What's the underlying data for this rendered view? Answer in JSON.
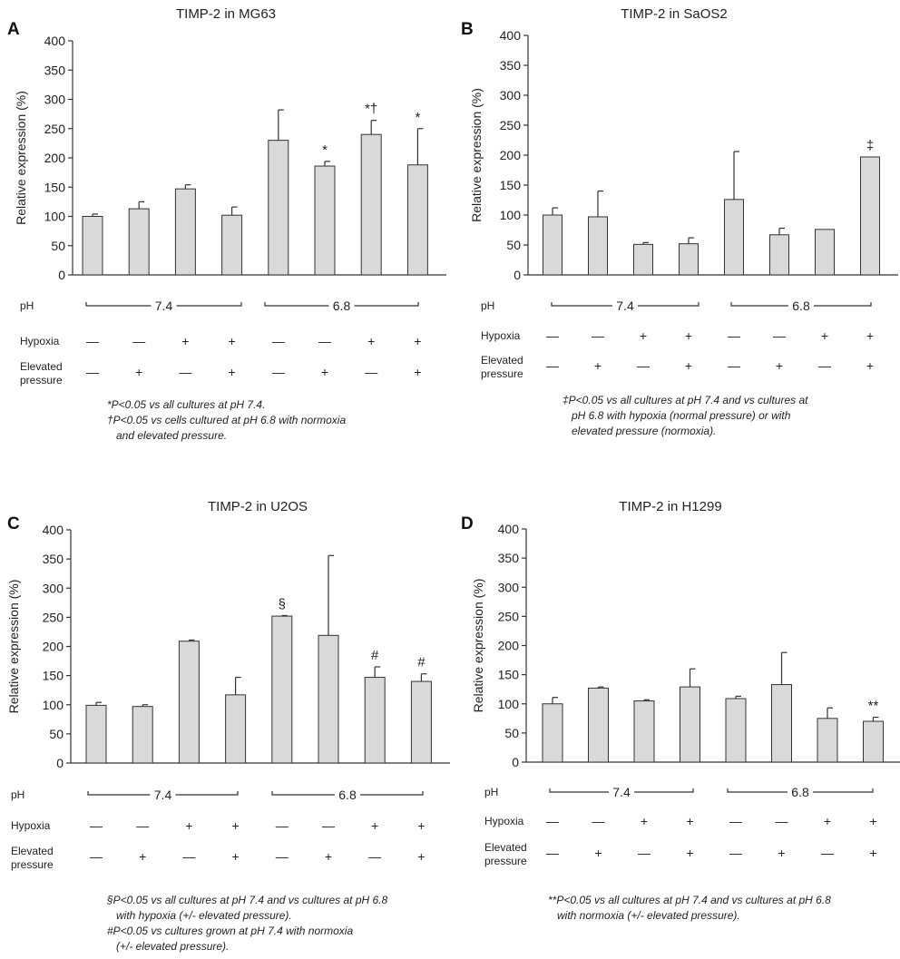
{
  "row_labels": {
    "ph": "pH",
    "hypoxia": "Hypoxia",
    "elevated_line1": "Elevated",
    "elevated_line2": "pressure",
    "ph_group1": "7.4",
    "ph_group2": "6.8"
  },
  "ylabel": "Relative expression (%)",
  "hypoxia_signs": [
    "—",
    "—",
    "+",
    "+",
    "—",
    "—",
    "+",
    "+"
  ],
  "pressure_signs": [
    "—",
    "+",
    "—",
    "+",
    "—",
    "+",
    "—",
    "+"
  ],
  "notes": {
    "A": [
      "*P<0.05 vs all cultures at pH 7.4.",
      "†P<0.05 vs cells cultured at pH 6.8 with normoxia",
      "   and elevated pressure."
    ],
    "B": [
      "‡P<0.05 vs all cultures at pH 7.4 and vs cultures at",
      "   pH 6.8 with hypoxia (normal pressure) or with",
      "   elevated pressure (normoxia)."
    ],
    "C": [
      "§P<0.05 vs all cultures at pH 7.4 and vs cultures at pH 6.8",
      "   with hypoxia (+/- elevated pressure).",
      "#P<0.05 vs cultures grown at pH 7.4 with normoxia",
      "   (+/- elevated pressure)."
    ],
    "D": [
      "**P<0.05 vs all cultures at pH 7.4 and vs cultures at pH 6.8",
      "   with normoxia (+/- elevated pressure)."
    ]
  },
  "chart_data": [
    {
      "panel": "A",
      "type": "bar",
      "title": "TIMP-2 in MG63",
      "ylabel": "Relative expression (%)",
      "ylim": [
        0,
        400
      ],
      "yticks": [
        0,
        50,
        100,
        150,
        200,
        250,
        300,
        350,
        400
      ],
      "categories": [
        "pH 7.4 / normoxia / normal",
        "pH 7.4 / normoxia / elevated",
        "pH 7.4 / hypoxia / normal",
        "pH 7.4 / hypoxia / elevated",
        "pH 6.8 / normoxia / normal",
        "pH 6.8 / normoxia / elevated",
        "pH 6.8 / hypoxia / normal",
        "pH 6.8 / hypoxia / elevated"
      ],
      "values": [
        100,
        113,
        147,
        102,
        230,
        186,
        240,
        188
      ],
      "errors": [
        4,
        12,
        7,
        14,
        52,
        8,
        24,
        62
      ],
      "annotations": [
        "",
        "",
        "",
        "",
        "",
        "*",
        "*†",
        "*"
      ]
    },
    {
      "panel": "B",
      "type": "bar",
      "title": "TIMP-2 in SaOS2",
      "ylabel": "Relative expression (%)",
      "ylim": [
        0,
        400
      ],
      "yticks": [
        0,
        50,
        100,
        150,
        200,
        250,
        300,
        350,
        400
      ],
      "categories": [
        "pH 7.4 / normoxia / normal",
        "pH 7.4 / normoxia / elevated",
        "pH 7.4 / hypoxia / normal",
        "pH 7.4 / hypoxia / elevated",
        "pH 6.8 / normoxia / normal",
        "pH 6.8 / normoxia / elevated",
        "pH 6.8 / hypoxia / normal",
        "pH 6.8 / hypoxia / elevated"
      ],
      "values": [
        100,
        97,
        51,
        52,
        126,
        67,
        76,
        197
      ],
      "errors": [
        12,
        43,
        3,
        10,
        80,
        11,
        0,
        0
      ],
      "annotations": [
        "",
        "",
        "",
        "",
        "",
        "",
        "",
        "‡"
      ]
    },
    {
      "panel": "C",
      "type": "bar",
      "title": "TIMP-2 in U2OS",
      "ylabel": "Relative expression (%)",
      "ylim": [
        0,
        400
      ],
      "yticks": [
        0,
        50,
        100,
        150,
        200,
        250,
        300,
        350,
        400
      ],
      "categories": [
        "pH 7.4 / normoxia / normal",
        "pH 7.4 / normoxia / elevated",
        "pH 7.4 / hypoxia / normal",
        "pH 7.4 / hypoxia / elevated",
        "pH 6.8 / normoxia / normal",
        "pH 6.8 / normoxia / elevated",
        "pH 6.8 / hypoxia / normal",
        "pH 6.8 / hypoxia / elevated"
      ],
      "values": [
        99,
        97,
        209,
        117,
        252,
        219,
        147,
        140
      ],
      "errors": [
        5,
        3,
        2,
        30,
        1,
        137,
        18,
        13
      ],
      "annotations": [
        "",
        "",
        "",
        "",
        "§",
        "",
        "#",
        "#"
      ]
    },
    {
      "panel": "D",
      "type": "bar",
      "title": "TIMP-2 in H1299",
      "ylabel": "Relative expression (%)",
      "ylim": [
        0,
        400
      ],
      "yticks": [
        0,
        50,
        100,
        150,
        200,
        250,
        300,
        350,
        400
      ],
      "categories": [
        "pH 7.4 / normoxia / normal",
        "pH 7.4 / normoxia / elevated",
        "pH 7.4 / hypoxia / normal",
        "pH 7.4 / hypoxia / elevated",
        "pH 6.8 / normoxia / normal",
        "pH 6.8 / normoxia / elevated",
        "pH 6.8 / hypoxia / normal",
        "pH 6.8 / hypoxia / elevated"
      ],
      "values": [
        100,
        127,
        105,
        129,
        109,
        133,
        75,
        70
      ],
      "errors": [
        11,
        2,
        2,
        31,
        4,
        55,
        18,
        7
      ],
      "annotations": [
        "",
        "",
        "",
        "",
        "",
        "",
        "",
        "**"
      ]
    }
  ]
}
